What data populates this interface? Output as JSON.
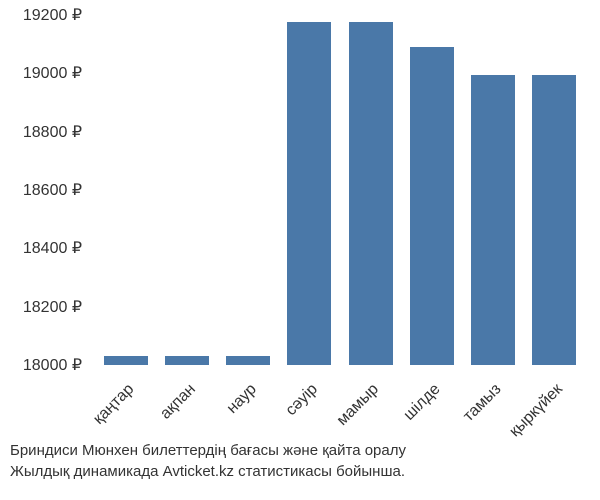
{
  "chart": {
    "type": "bar",
    "categories": [
      "қаңтар",
      "ақпан",
      "наур",
      "сәуір",
      "мамыр",
      "шілде",
      "тамыз",
      "қыркүйек"
    ],
    "values": [
      18030,
      18030,
      18030,
      19175,
      19175,
      19090,
      18995,
      18995
    ],
    "bar_color": "#4a78a8",
    "ylim": [
      18000,
      19200
    ],
    "ytick_step": 200,
    "yticks": [
      "18000 ₽",
      "18200 ₽",
      "18400 ₽",
      "18600 ₽",
      "18800 ₽",
      "19000 ₽",
      "19200 ₽"
    ],
    "ytick_values": [
      18000,
      18200,
      18400,
      18600,
      18800,
      19000,
      19200
    ],
    "background_color": "#ffffff",
    "label_fontsize": 16,
    "bar_width_ratio": 0.72,
    "x_label_rotation": -45
  },
  "caption": {
    "line1": "Бриндиси Мюнхен билеттердің бағасы және қайта оралу",
    "line2": "Жылдық динамикада Avticket.kz статистикасы бойынша."
  }
}
